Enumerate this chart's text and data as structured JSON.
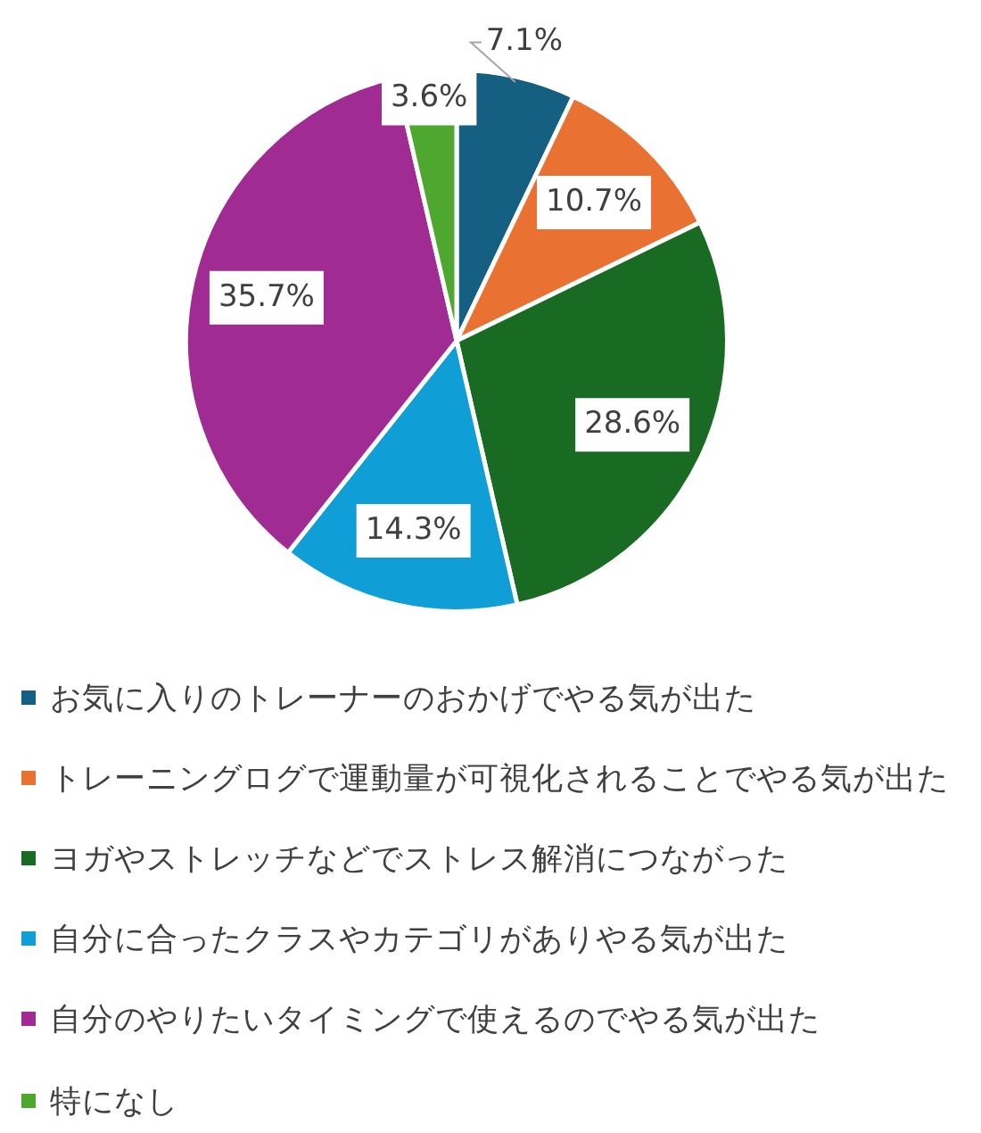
{
  "chart_data": {
    "type": "pie",
    "categories": [
      "お気に入りのトレーナーのおかげでやる気が出た",
      "トレーニングログで運動量が可視化されることでやる気が出た",
      "ヨガやストレッチなどでストレス解消につながった",
      "自分に合ったクラスやカテゴリがありやる気が出た",
      "自分のやりたいタイミングで使えるのでやる気が出た",
      "特になし"
    ],
    "values": [
      7.1,
      10.7,
      28.6,
      14.3,
      35.7,
      3.6
    ],
    "colors": [
      "#155f82",
      "#e97132",
      "#196b24",
      "#0f9ed5",
      "#a02b93",
      "#4ea72e"
    ],
    "value_labels": [
      "7.1%",
      "10.7%",
      "28.6%",
      "14.3%",
      "35.7%",
      "3.6%"
    ],
    "legend": "bottom"
  }
}
